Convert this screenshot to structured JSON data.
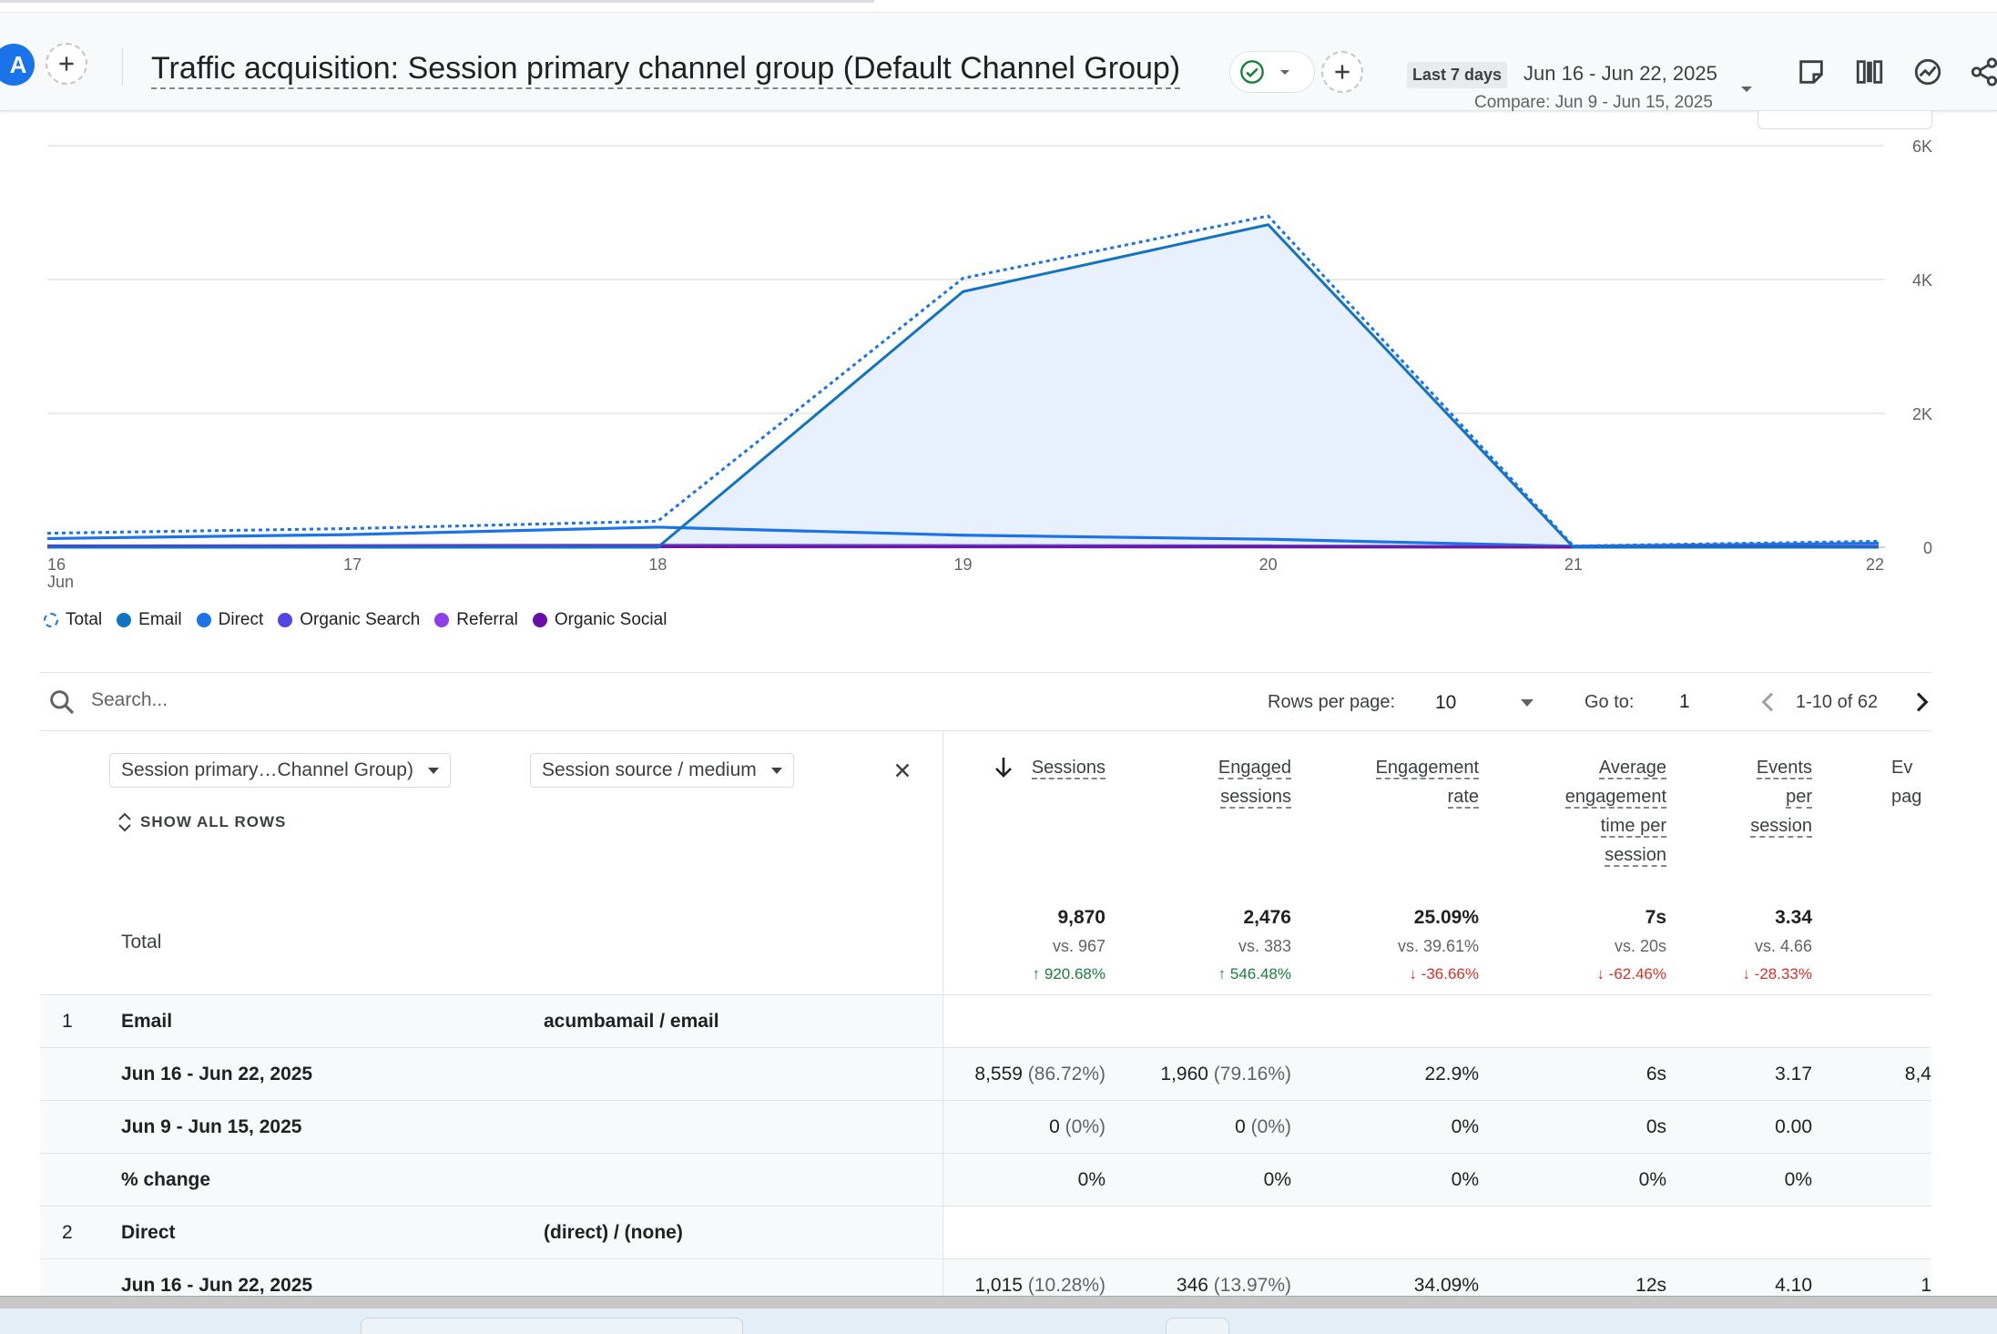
{
  "header": {
    "avatar_letter": "A",
    "report_title": "Traffic acquisition: Session primary channel group (Default Channel Group)",
    "date_preset": "Last 7 days",
    "date_range": "Jun 16 - Jun 22, 2025",
    "compare_range": "Compare: Jun 9 - Jun 15, 2025",
    "icons": [
      "add-comparison-icon",
      "share-icon",
      "insights-icon",
      "customize-report-icon",
      "edit-note-icon"
    ],
    "accent_color": "#1a73e8",
    "status_color": "#188038"
  },
  "chart_data": {
    "type": "line",
    "x": [
      "16",
      "17",
      "18",
      "19",
      "20",
      "21",
      "22"
    ],
    "x_sublabel_first": "Jun",
    "y_ticks": [
      "6K",
      "4K",
      "2K",
      "0"
    ],
    "ylim": [
      0,
      6000
    ],
    "grid": true,
    "legend_position": "bottom-left",
    "series": [
      {
        "name": "Total",
        "style": "dashed",
        "color": "#1a73e8",
        "values": [
          210,
          280,
          390,
          4020,
          4950,
          20,
          90
        ]
      },
      {
        "name": "Email",
        "style": "solid",
        "color": "#1a73e8",
        "fill": "#e8f0fe",
        "values": [
          0,
          0,
          0,
          3820,
          4820,
          0,
          0
        ]
      },
      {
        "name": "Direct",
        "style": "solid",
        "color": "#1a73e8",
        "values": [
          130,
          190,
          300,
          180,
          120,
          15,
          60
        ]
      },
      {
        "name": "Organic Search",
        "style": "solid",
        "color": "#4f46e5",
        "values": [
          20,
          25,
          30,
          25,
          20,
          5,
          10
        ]
      },
      {
        "name": "Referral",
        "style": "solid",
        "color": "#7e3ff2",
        "values": [
          10,
          12,
          14,
          12,
          10,
          4,
          8
        ]
      },
      {
        "name": "Organic Social",
        "style": "solid",
        "color": "#6a1b9a",
        "values": [
          5,
          6,
          8,
          6,
          5,
          2,
          4
        ]
      }
    ]
  },
  "legend": [
    {
      "label": "Total",
      "color": "#1a73e8",
      "dashed": true
    },
    {
      "label": "Email",
      "color": "#1274c0",
      "dashed": false
    },
    {
      "label": "Direct",
      "color": "#1a73e8",
      "dashed": false
    },
    {
      "label": "Organic Search",
      "color": "#4f46e5",
      "dashed": false
    },
    {
      "label": "Referral",
      "color": "#8e3fe8",
      "dashed": false
    },
    {
      "label": "Organic Social",
      "color": "#6a0dad",
      "dashed": false
    }
  ],
  "toolbar": {
    "search_placeholder": "Search...",
    "rows_per_page_label": "Rows per page:",
    "rows_per_page_value": "10",
    "goto_label": "Go to:",
    "goto_value": "1",
    "pagination": "1-10 of 62"
  },
  "table": {
    "dimension_1": "Session primary…Channel Group)",
    "dimension_2": "Session source / medium",
    "show_all_rows": "SHOW ALL ROWS",
    "metrics": [
      {
        "label_lines": [
          "Sessions"
        ],
        "sorted": true
      },
      {
        "label_lines": [
          "Engaged",
          "sessions"
        ]
      },
      {
        "label_lines": [
          "Engagement",
          "rate"
        ]
      },
      {
        "label_lines": [
          "Average",
          "engagement",
          "time per",
          "session"
        ]
      },
      {
        "label_lines": [
          "Events",
          "per",
          "session"
        ]
      },
      {
        "label_lines": [
          "Ev",
          "pag"
        ]
      }
    ],
    "total": {
      "label": "Total",
      "cells": [
        {
          "value": "9,870",
          "vs": "vs. 967",
          "change": "920.68%",
          "dir": "up"
        },
        {
          "value": "2,476",
          "vs": "vs. 383",
          "change": "546.48%",
          "dir": "up"
        },
        {
          "value": "25.09%",
          "vs": "vs. 39.61%",
          "change": "-36.66%",
          "dir": "down"
        },
        {
          "value": "7s",
          "vs": "vs. 20s",
          "change": "-62.46%",
          "dir": "down"
        },
        {
          "value": "3.34",
          "vs": "vs. 4.66",
          "change": "-28.33%",
          "dir": "down"
        }
      ]
    },
    "rows": [
      {
        "rank": "1",
        "channel": "Email",
        "source": "acumbamail / email"
      },
      {
        "label": "Jun 16 - Jun 22, 2025",
        "bold": true,
        "cells": [
          [
            "8,559",
            " (86.72%)"
          ],
          [
            "1,960",
            " (79.16%)"
          ],
          [
            "22.9%",
            ""
          ],
          [
            "6s",
            ""
          ],
          [
            "3.17",
            ""
          ],
          [
            "8,4",
            ""
          ]
        ]
      },
      {
        "label": "Jun 9 - Jun 15, 2025",
        "bold": true,
        "cells": [
          [
            "0",
            " (0%)"
          ],
          [
            "0",
            " (0%)"
          ],
          [
            "0%",
            ""
          ],
          [
            "0s",
            ""
          ],
          [
            "0.00",
            ""
          ],
          [
            "",
            ""
          ]
        ]
      },
      {
        "label": "% change",
        "bold": true,
        "cells": [
          [
            "0%",
            ""
          ],
          [
            "0%",
            ""
          ],
          [
            "0%",
            ""
          ],
          [
            "0%",
            ""
          ],
          [
            "0%",
            ""
          ],
          [
            "",
            ""
          ]
        ]
      },
      {
        "rank": "2",
        "channel": "Direct",
        "source": "(direct) / (none)"
      },
      {
        "label": "Jun 16 - Jun 22, 2025",
        "bold": true,
        "cells": [
          [
            "1,015",
            " (10.28%)"
          ],
          [
            "346",
            " (13.97%)"
          ],
          [
            "34.09%",
            ""
          ],
          [
            "12s",
            ""
          ],
          [
            "4.10",
            ""
          ],
          [
            "1",
            ""
          ]
        ]
      }
    ]
  }
}
